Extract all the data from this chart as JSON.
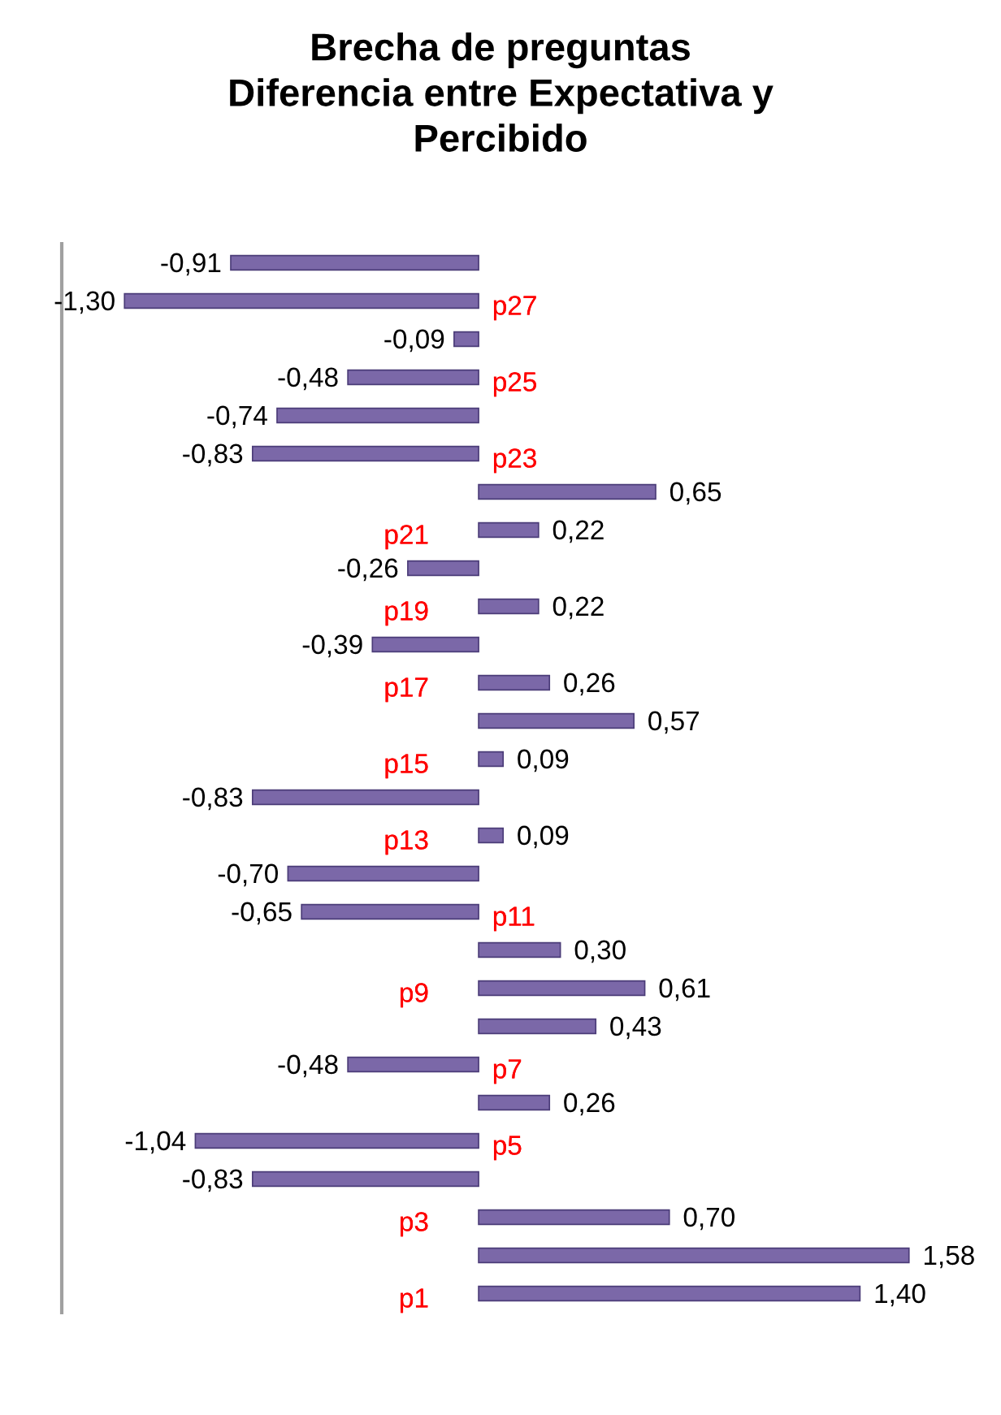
{
  "chart_data": {
    "type": "bar",
    "orientation": "horizontal",
    "title": "Brecha de preguntas\nDiferencia entre Expectativa y\nPercibido",
    "categories": [
      null,
      "p27",
      null,
      "p25",
      null,
      "p23",
      null,
      "p21",
      null,
      "p19",
      null,
      "p17",
      null,
      "p15",
      null,
      "p13",
      null,
      "p11",
      null,
      "p9",
      null,
      "p7",
      null,
      "p5",
      null,
      "p3",
      null,
      "p1"
    ],
    "values": [
      -0.91,
      -1.3,
      -0.09,
      -0.48,
      -0.74,
      -0.83,
      0.65,
      0.22,
      -0.26,
      0.22,
      -0.39,
      0.26,
      0.57,
      0.09,
      -0.83,
      0.09,
      -0.7,
      -0.65,
      0.3,
      0.61,
      0.43,
      -0.48,
      0.26,
      -1.04,
      -0.83,
      0.7,
      1.58,
      1.4
    ],
    "value_labels": [
      "-0,91",
      "-1,30",
      "-0,09",
      "-0,48",
      "-0,74",
      "-0,83",
      "0,65",
      "0,22",
      "-0,26",
      "0,22",
      "-0,39",
      "0,26",
      "0,57",
      "0,09",
      "-0,83",
      "0,09",
      "-0,70",
      "-0,65",
      "0,30",
      "0,61",
      "0,43",
      "-0,48",
      "0,26",
      "-1,04",
      "-0,83",
      "0,70",
      "1,58",
      "1,40"
    ],
    "color": "#7b68a8",
    "tick_labels": "y"
  }
}
